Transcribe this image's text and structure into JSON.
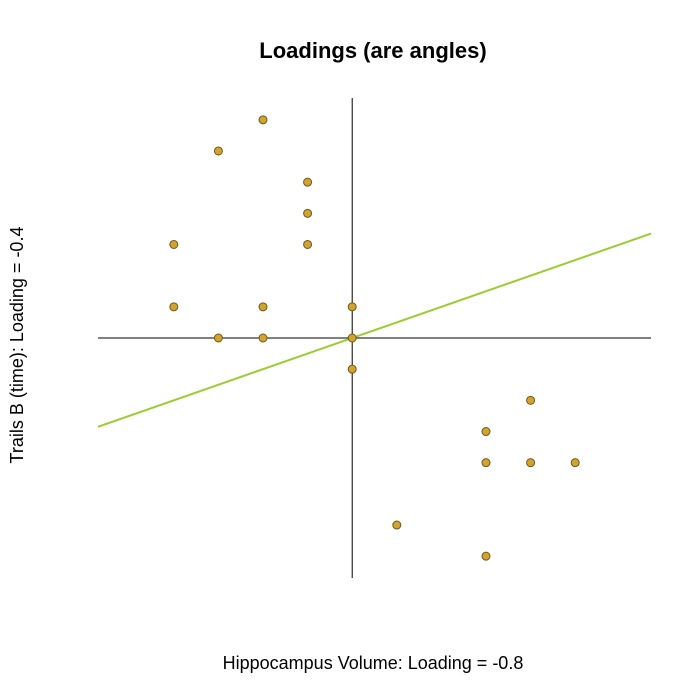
{
  "chart_data": {
    "type": "scatter",
    "title": "Loadings (are angles)",
    "xlabel": "Hippocampus Volume: Loading = -0.8",
    "ylabel": "Trails B (time): Loading = -0.4",
    "xlim": [
      -5.7,
      6.7
    ],
    "ylim": [
      -7.7,
      7.7
    ],
    "grid": false,
    "colors": {
      "point_fill": "#D4A22E",
      "point_stroke": "#6B5A1E",
      "axis_line": "#000000",
      "fit_line": "#9ACD32"
    },
    "points": [
      {
        "x": -2,
        "y": 7
      },
      {
        "x": -3,
        "y": 6
      },
      {
        "x": -1,
        "y": 5
      },
      {
        "x": -1,
        "y": 4
      },
      {
        "x": -4,
        "y": 3
      },
      {
        "x": -1,
        "y": 3
      },
      {
        "x": -4,
        "y": 1
      },
      {
        "x": -2,
        "y": 1
      },
      {
        "x": 0,
        "y": 1
      },
      {
        "x": -3,
        "y": 0
      },
      {
        "x": -2,
        "y": 0
      },
      {
        "x": 0,
        "y": 0
      },
      {
        "x": 0,
        "y": -1
      },
      {
        "x": 4,
        "y": -2
      },
      {
        "x": 3,
        "y": -3
      },
      {
        "x": 3,
        "y": -4
      },
      {
        "x": 4,
        "y": -4
      },
      {
        "x": 5,
        "y": -4
      },
      {
        "x": 1,
        "y": -6
      },
      {
        "x": 3,
        "y": -7
      }
    ],
    "fit_line": {
      "slope": 0.5,
      "intercept": 0
    }
  }
}
